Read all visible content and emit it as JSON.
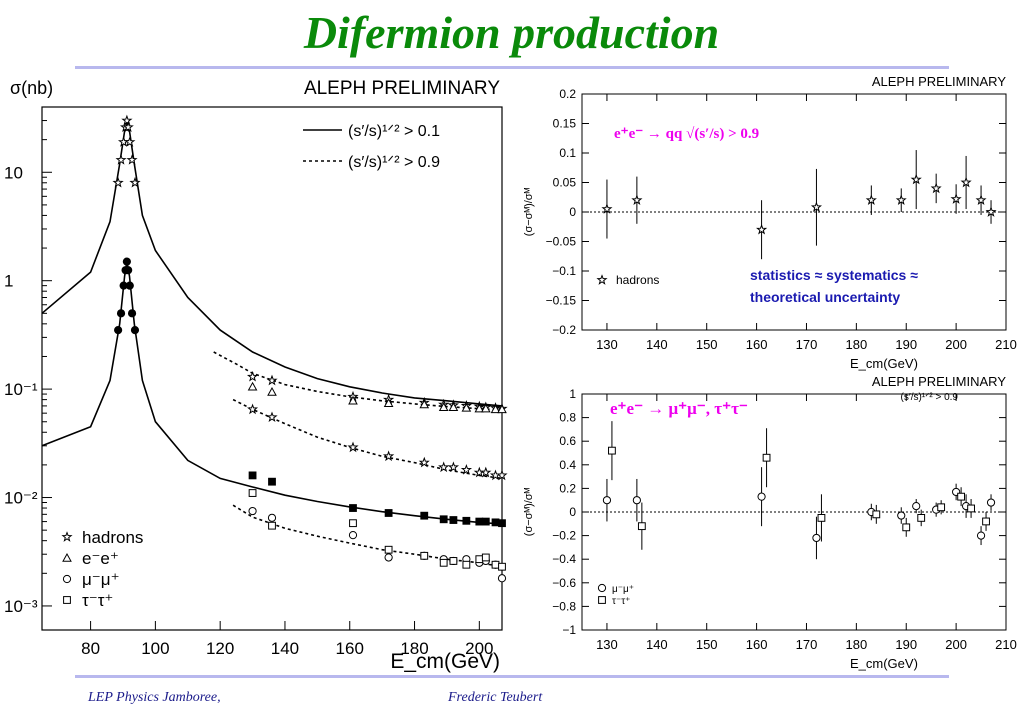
{
  "page": {
    "title": "Difermion production",
    "footer_left": "LEP Physics Jamboree,",
    "footer_right": "Frederic Teubert",
    "accent_title": "#0a8a0a",
    "rule_color": "#b8b8ee"
  },
  "chart_data": [
    {
      "type": "scatter",
      "label": "ALEPH PRELIMINARY",
      "ylabel": "σ(nb)",
      "xlabel": "E_cm(GeV)",
      "yscale": "log",
      "xlim": [
        65,
        207
      ],
      "ylim": [
        0.0006,
        40
      ],
      "xticks": [
        80,
        100,
        120,
        140,
        160,
        180,
        200
      ],
      "yticks": [
        {
          "value": 10,
          "label": "10"
        },
        {
          "value": 1,
          "label": "1"
        },
        {
          "value": 0.1,
          "label": "10⁻¹"
        },
        {
          "value": 0.01,
          "label": "10⁻²"
        },
        {
          "value": 0.001,
          "label": "10⁻³"
        }
      ],
      "curve_legend": [
        {
          "label": "(s′/s)¹ᐟ² > 0.1",
          "style": "solid"
        },
        {
          "label": "(s′/s)¹ᐟ² > 0.9",
          "style": "dotted"
        }
      ],
      "marker_legend": [
        {
          "symbol": "star",
          "label": "hadrons"
        },
        {
          "symbol": "triangle",
          "label": "e⁻e⁺"
        },
        {
          "symbol": "circle",
          "label": "μ⁻μ⁺"
        },
        {
          "symbol": "square",
          "label": "τ⁻τ⁺"
        }
      ],
      "curves": {
        "hadron_solid": {
          "x": [
            65,
            80,
            86,
            89,
            90.5,
            91.2,
            92,
            93.5,
            96,
            100,
            110,
            120,
            130,
            140,
            150,
            160,
            170,
            180,
            190,
            200,
            207
          ],
          "y": [
            0.5,
            1.2,
            3.5,
            12,
            24,
            30,
            24,
            12,
            4,
            1.9,
            0.7,
            0.35,
            0.22,
            0.16,
            0.125,
            0.105,
            0.092,
            0.083,
            0.078,
            0.073,
            0.07
          ]
        },
        "hadron_dotted": {
          "x": [
            118,
            125,
            130,
            140,
            150,
            160,
            170,
            180,
            190,
            200,
            207
          ],
          "y": [
            0.22,
            0.17,
            0.14,
            0.11,
            0.095,
            0.085,
            0.078,
            0.073,
            0.069,
            0.066,
            0.064
          ]
        },
        "had_dotted_low": {
          "x": [
            124,
            130,
            140,
            150,
            160,
            170,
            180,
            190,
            200,
            207
          ],
          "y": [
            0.08,
            0.065,
            0.048,
            0.036,
            0.029,
            0.024,
            0.021,
            0.018,
            0.016,
            0.015
          ]
        },
        "lepton_solid": {
          "x": [
            65,
            80,
            86,
            89,
            90.5,
            91.2,
            92,
            93.5,
            96,
            100,
            110,
            120,
            130,
            140,
            150,
            160,
            170,
            180,
            190,
            200,
            207
          ],
          "y": [
            0.03,
            0.045,
            0.12,
            0.4,
            1.1,
            1.5,
            1.1,
            0.4,
            0.12,
            0.05,
            0.022,
            0.015,
            0.0125,
            0.0105,
            0.0092,
            0.0082,
            0.0074,
            0.0068,
            0.0063,
            0.0059,
            0.0057
          ]
        },
        "lepton_dotted": {
          "x": [
            124,
            130,
            140,
            150,
            160,
            170,
            180,
            190,
            200,
            207
          ],
          "y": [
            0.0085,
            0.0066,
            0.0052,
            0.0044,
            0.0038,
            0.0033,
            0.003,
            0.0027,
            0.0025,
            0.0023
          ]
        }
      },
      "points": {
        "hadron_peak": {
          "x": [
            88.5,
            89.4,
            90.2,
            90.8,
            91.2,
            91.6,
            92.1,
            92.8,
            93.7
          ],
          "y": [
            8,
            13,
            19,
            26,
            30,
            26,
            19,
            13,
            8
          ]
        },
        "hadron_dotted": {
          "x": [
            130,
            136,
            161,
            172,
            183,
            189,
            192,
            196,
            200,
            202,
            205,
            207
          ],
          "y": [
            0.13,
            0.12,
            0.085,
            0.08,
            0.075,
            0.072,
            0.071,
            0.07,
            0.069,
            0.068,
            0.067,
            0.066
          ]
        },
        "hadron_low": {
          "x": [
            130,
            136,
            161,
            172,
            183,
            189,
            192,
            196,
            200,
            202,
            205,
            207
          ],
          "y": [
            0.065,
            0.055,
            0.029,
            0.024,
            0.021,
            0.019,
            0.019,
            0.018,
            0.017,
            0.017,
            0.016,
            0.016
          ]
        },
        "ee": {
          "x": [
            130,
            136,
            161,
            172,
            183,
            189,
            192,
            196,
            200,
            202,
            205,
            207
          ],
          "y": [
            0.105,
            0.094,
            0.078,
            0.074,
            0.072,
            0.068,
            0.068,
            0.067,
            0.066,
            0.066,
            0.065,
            0.065
          ]
        },
        "lepton_peak": {
          "x": [
            88.5,
            89.4,
            90.2,
            90.8,
            91.2,
            91.6,
            92.1,
            92.8,
            93.7
          ],
          "y": [
            0.35,
            0.5,
            0.9,
            1.25,
            1.5,
            1.25,
            0.9,
            0.5,
            0.35
          ]
        },
        "mumu_solid": {
          "x": [
            130,
            136,
            161,
            172,
            183,
            189,
            192,
            196,
            200,
            202,
            205,
            207
          ],
          "y": [
            0.016,
            0.014,
            0.008,
            0.0072,
            0.0068,
            0.0063,
            0.0062,
            0.0061,
            0.006,
            0.006,
            0.0059,
            0.0058
          ]
        },
        "mumu": {
          "x": [
            130,
            136,
            161,
            172,
            183,
            189,
            192,
            196,
            200,
            202,
            205,
            207
          ],
          "y": [
            0.0075,
            0.0065,
            0.0045,
            0.0028,
            0.0029,
            0.0027,
            0.0026,
            0.0027,
            0.0025,
            0.0026,
            0.0024,
            0.0018
          ]
        },
        "tautau": {
          "x": [
            130,
            136,
            161,
            172,
            183,
            189,
            192,
            196,
            200,
            202,
            205,
            207
          ],
          "y": [
            0.011,
            0.0055,
            0.0058,
            0.0033,
            0.0029,
            0.0025,
            0.0026,
            0.0024,
            0.0027,
            0.0028,
            0.0024,
            0.0023
          ]
        }
      }
    },
    {
      "type": "scatter",
      "label": "ALEPH PRELIMINARY",
      "ylabel": "(σ−σᴹ)/σᴹ",
      "xlabel": "E_cm(GeV)",
      "xlim": [
        125,
        210
      ],
      "ylim": [
        -0.2,
        0.2
      ],
      "xticks": [
        130,
        140,
        150,
        160,
        170,
        180,
        190,
        200,
        210
      ],
      "yticks": [
        0.2,
        0.15,
        0.1,
        0.05,
        0,
        -0.05,
        -0.1,
        -0.15,
        -0.2
      ],
      "ytick_labels": [
        "0.2",
        "0.15",
        "0.1",
        "0.05",
        "0",
        "−0.05",
        "−0.1",
        "−0.15",
        "−0.2"
      ],
      "annotation": "e⁺e⁻ → qq    √(s′/s) > 0.9",
      "annotation_color": "#ee00ee",
      "annotation_highlight": "#ff8c00",
      "note_lines": [
        "statistics ≈ systematics ≈",
        "theoretical uncertainty"
      ],
      "note_color": "#1a1ab0",
      "legend": [
        {
          "symbol": "star",
          "label": "hadrons"
        }
      ],
      "points": {
        "x": [
          130,
          136,
          161,
          172,
          183,
          189,
          192,
          196,
          200,
          202,
          205,
          207
        ],
        "y": [
          0.005,
          0.02,
          -0.03,
          0.008,
          0.02,
          0.02,
          0.055,
          0.04,
          0.022,
          0.05,
          0.02,
          0.0
        ],
        "err": [
          0.05,
          0.04,
          0.05,
          0.065,
          0.025,
          0.02,
          0.05,
          0.025,
          0.025,
          0.045,
          0.025,
          0.02
        ]
      }
    },
    {
      "type": "scatter",
      "label": "ALEPH PRELIMINARY",
      "sublabel": "(s′/s)¹ᐟ² > 0.9",
      "ylabel": "(σ−σᴹ)/σᴹ",
      "xlabel": "E_cm(GeV)",
      "xlim": [
        125,
        210
      ],
      "ylim": [
        -1,
        1
      ],
      "xticks": [
        130,
        140,
        150,
        160,
        170,
        180,
        190,
        200,
        210
      ],
      "yticks": [
        1,
        0.8,
        0.6,
        0.4,
        0.2,
        0,
        -0.2,
        -0.4,
        -0.6,
        -0.8,
        -1
      ],
      "ytick_labels": [
        "1",
        "0.8",
        "0.6",
        "0.4",
        "0.2",
        "0",
        "−0.2",
        "−0.4",
        "−0.6",
        "−0.8",
        "−1"
      ],
      "annotation": "e⁺e⁻ → μ⁺μ⁻, τ⁺τ⁻",
      "annotation_color": "#ee00ee",
      "legend": [
        {
          "symbol": "circle",
          "label": "μ⁻μ⁺"
        },
        {
          "symbol": "square",
          "label": "τ⁻τ⁺"
        }
      ],
      "series": [
        {
          "symbol": "circle",
          "x": [
            130,
            136,
            161,
            172,
            183,
            189,
            192,
            196,
            200,
            202,
            205,
            207
          ],
          "y": [
            0.1,
            0.1,
            0.13,
            -0.22,
            0.0,
            -0.03,
            0.05,
            0.02,
            0.17,
            0.05,
            -0.2,
            0.08
          ],
          "err": [
            0.18,
            0.18,
            0.25,
            0.18,
            0.07,
            0.07,
            0.06,
            0.06,
            0.07,
            0.1,
            0.08,
            0.07
          ]
        },
        {
          "symbol": "square",
          "x": [
            131,
            137,
            162,
            173,
            184,
            190,
            193,
            197,
            201,
            203,
            206
          ],
          "y": [
            0.52,
            -0.12,
            0.46,
            -0.05,
            -0.02,
            -0.13,
            -0.05,
            0.04,
            0.13,
            0.03,
            -0.08
          ],
          "err": [
            0.25,
            0.2,
            0.25,
            0.2,
            0.08,
            0.08,
            0.07,
            0.06,
            0.08,
            0.08,
            0.08
          ]
        }
      ]
    }
  ]
}
